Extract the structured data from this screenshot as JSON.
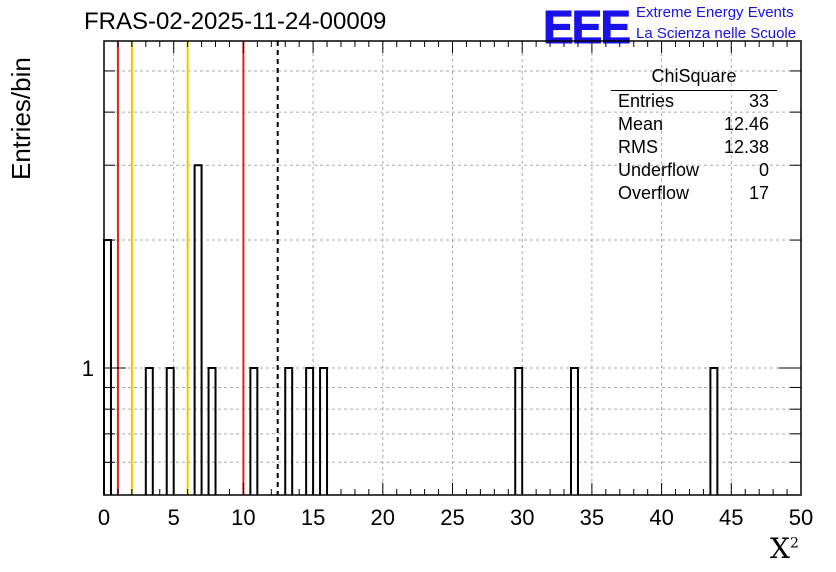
{
  "header": {
    "title": "FRAS-02-2025-11-24-00009",
    "logo_text": "EEE",
    "logo_line1": "Extreme Energy Events",
    "logo_line2": "La Scienza nelle Scuole"
  },
  "stats": {
    "title": "ChiSquare",
    "rows": [
      {
        "label": "Entries",
        "value": "33"
      },
      {
        "label": "Mean",
        "value": "12.46"
      },
      {
        "label": "RMS",
        "value": "12.38"
      },
      {
        "label": "Underflow",
        "value": "0"
      },
      {
        "label": "Overflow",
        "value": "17"
      }
    ]
  },
  "chart_data": {
    "type": "bar",
    "histogram": true,
    "ylabel": "Entries/bin",
    "xlabel": "X²",
    "xlim": [
      0,
      50
    ],
    "log_y": true,
    "ytick_labels": [
      "1"
    ],
    "xtick_labels": [
      "0",
      "5",
      "10",
      "15",
      "20",
      "25",
      "30",
      "35",
      "40",
      "45",
      "50"
    ],
    "grid": true,
    "bin_width": 0.5,
    "bins": [
      {
        "x": 0,
        "count": 2
      },
      {
        "x": 3,
        "count": 1
      },
      {
        "x": 4.5,
        "count": 1
      },
      {
        "x": 6.5,
        "count": 3
      },
      {
        "x": 7.5,
        "count": 1
      },
      {
        "x": 10.5,
        "count": 1
      },
      {
        "x": 13,
        "count": 1
      },
      {
        "x": 14.5,
        "count": 1
      },
      {
        "x": 15.5,
        "count": 1
      },
      {
        "x": 29.5,
        "count": 1
      },
      {
        "x": 33.5,
        "count": 1
      },
      {
        "x": 43.5,
        "count": 1
      }
    ],
    "vertical_lines": [
      {
        "x": 1,
        "color": "#e0231e",
        "style": "solid"
      },
      {
        "x": 2,
        "color": "#f5c400",
        "style": "solid"
      },
      {
        "x": 6,
        "color": "#f5c400",
        "style": "solid"
      },
      {
        "x": 10,
        "color": "#e0231e",
        "style": "solid"
      },
      {
        "x": 12.46,
        "color": "#000000",
        "style": "dashed"
      }
    ]
  }
}
